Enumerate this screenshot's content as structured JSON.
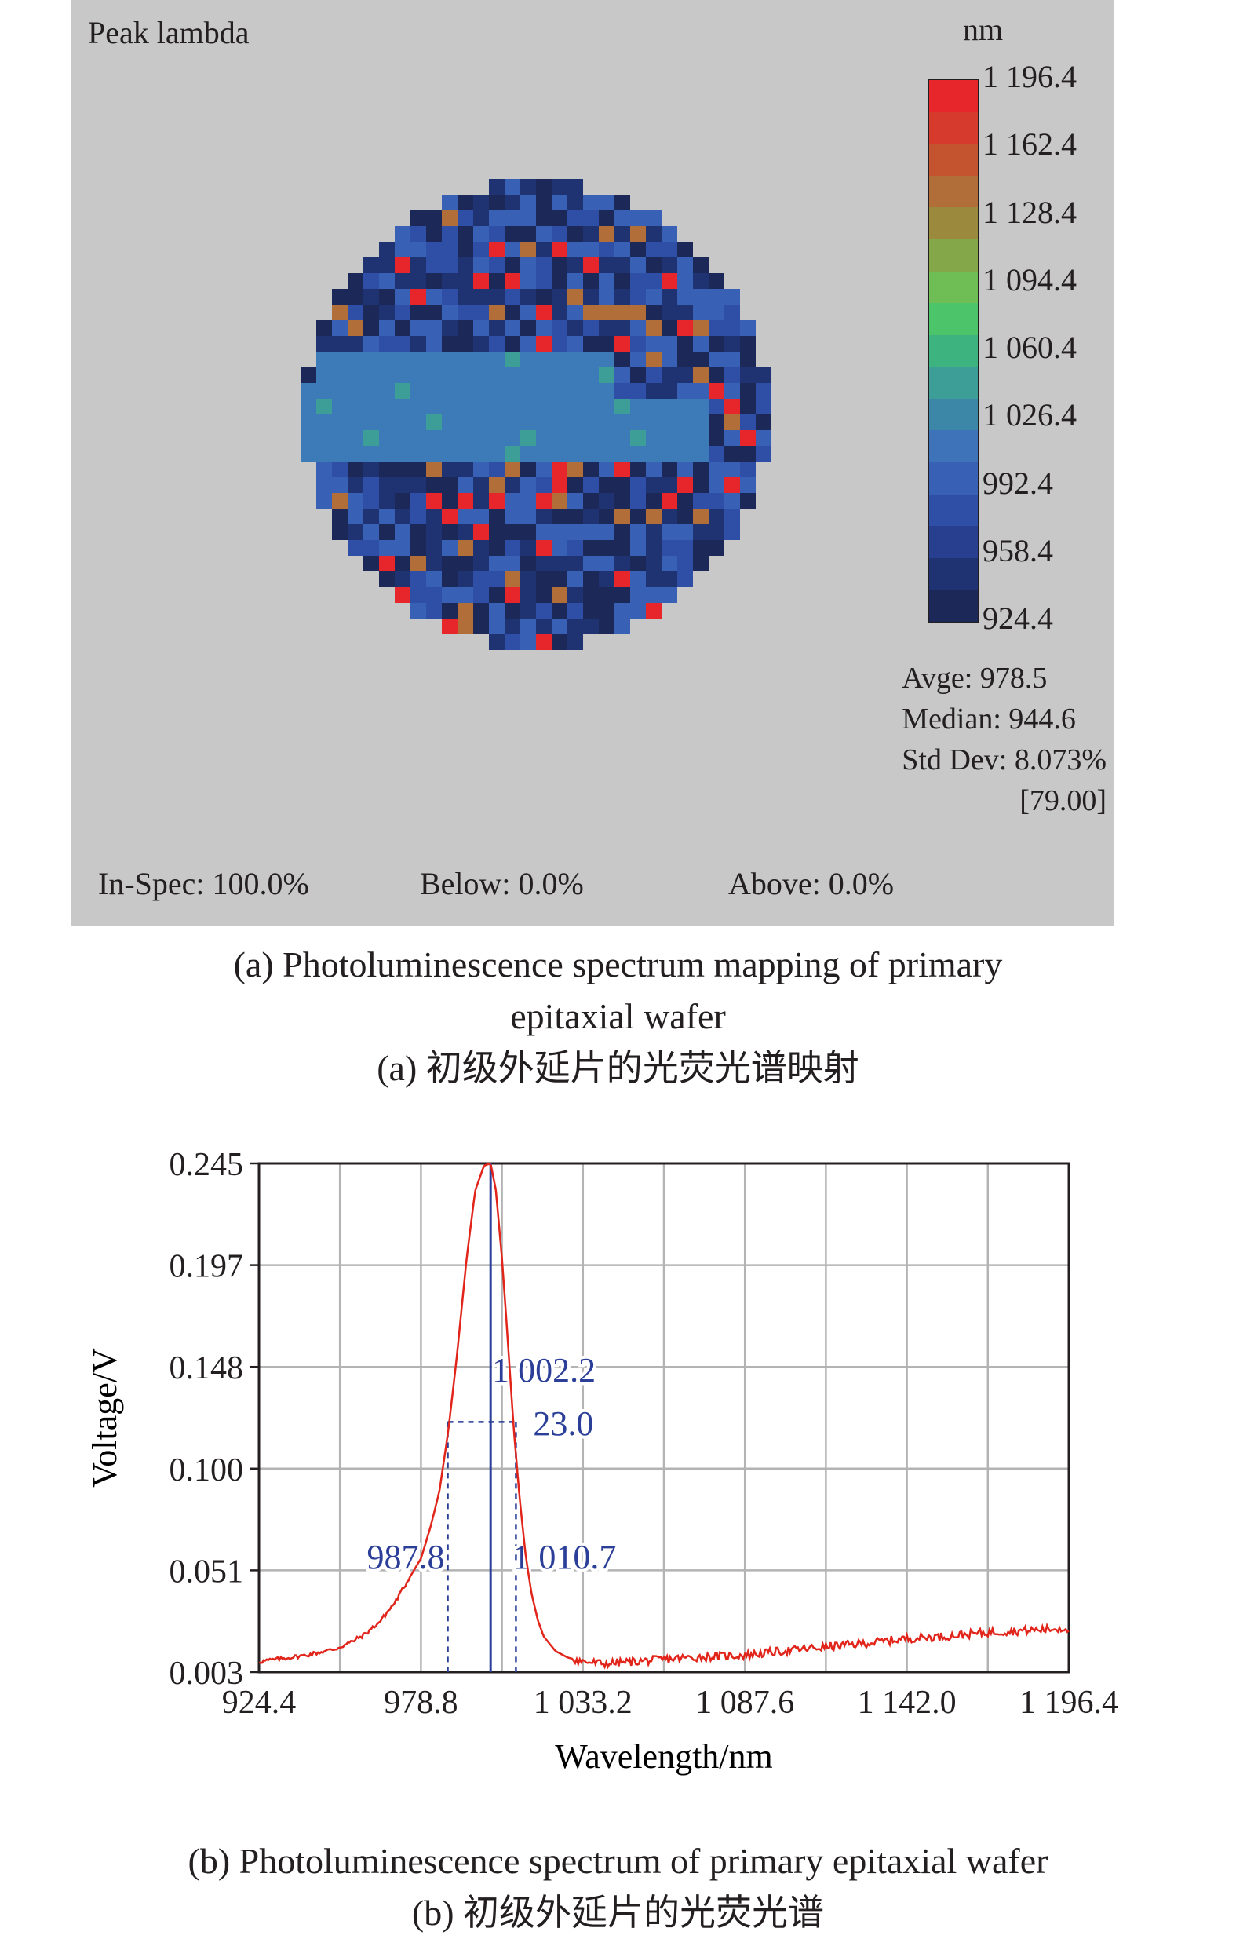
{
  "map": {
    "title": "Peak lambda",
    "unit": "nm",
    "scale_labels": [
      "1 196.4",
      "1 162.4",
      "1 128.4",
      "1 094.4",
      "1 060.4",
      "1 026.4",
      "992.4",
      "958.4",
      "924.4"
    ],
    "scale_colors": [
      "#e6262a",
      "#d53a2c",
      "#c4532f",
      "#b26e38",
      "#9b8a3e",
      "#84a74a",
      "#6fbe55",
      "#4cc46a",
      "#3db47f",
      "#3c9e96",
      "#3c86a8",
      "#3e73ba",
      "#3860b5",
      "#2f4fa6",
      "#273f8e",
      "#1f3272",
      "#1c2857"
    ],
    "stats": {
      "avge": "Avge: 978.5",
      "median": "Median: 944.6",
      "std": "Std Dev: 8.073%",
      "bracket": "[79.00]"
    },
    "footer": {
      "inspec": "In-Spec: 100.0%",
      "below": "Below: 0.0%",
      "above": "Above: 0.0%"
    },
    "caption_en_1": "(a) Photoluminescence spectrum mapping of primary",
    "caption_en_2": "epitaxial wafer",
    "caption_cn": "(a) 初级外延片的光荧光谱映射"
  },
  "chart_data": {
    "type": "line",
    "xlabel": "Wavelength/nm",
    "ylabel": "Voltage/V",
    "xlim": [
      924.4,
      1196.4
    ],
    "ylim": [
      0.003,
      0.245
    ],
    "xticks": [
      "924.4",
      "978.8",
      "1 033.2",
      "1 087.6",
      "1 142.0",
      "1 196.4"
    ],
    "yticks": [
      "0.245",
      "0.197",
      "0.148",
      "0.100",
      "0.051",
      "0.003"
    ],
    "grid": true,
    "line_color": "#e1251b",
    "annotation_color": "#2b3f99",
    "x": [
      924.4,
      930,
      940,
      950,
      955,
      960,
      965,
      970,
      975,
      978.8,
      982,
      985,
      988,
      991,
      994,
      997,
      1000,
      1002.2,
      1004,
      1006,
      1008,
      1010,
      1012,
      1014,
      1016,
      1018,
      1020,
      1024,
      1028,
      1033.2,
      1040,
      1050,
      1060,
      1070,
      1087.6,
      1100,
      1115,
      1130,
      1142.0,
      1155,
      1170,
      1185,
      1196.4
    ],
    "y": [
      0.008,
      0.009,
      0.011,
      0.014,
      0.017,
      0.021,
      0.027,
      0.036,
      0.048,
      0.057,
      0.072,
      0.089,
      0.118,
      0.155,
      0.198,
      0.232,
      0.244,
      0.245,
      0.232,
      0.2,
      0.16,
      0.118,
      0.085,
      0.058,
      0.04,
      0.028,
      0.02,
      0.013,
      0.01,
      0.008,
      0.007,
      0.008,
      0.009,
      0.01,
      0.011,
      0.013,
      0.015,
      0.017,
      0.019,
      0.02,
      0.022,
      0.023,
      0.024
    ],
    "annotations": {
      "peak": 1002.2,
      "peak_label": "1 002.2",
      "left": 987.8,
      "left_label": "987.8",
      "right": 1010.7,
      "right_label": "1 010.7",
      "fwhm_label": "23.0",
      "half_height": 0.122
    },
    "caption_en": "(b) Photoluminescence spectrum of primary epitaxial wafer",
    "caption_cn": "(b) 初级外延片的光荧光谱"
  }
}
